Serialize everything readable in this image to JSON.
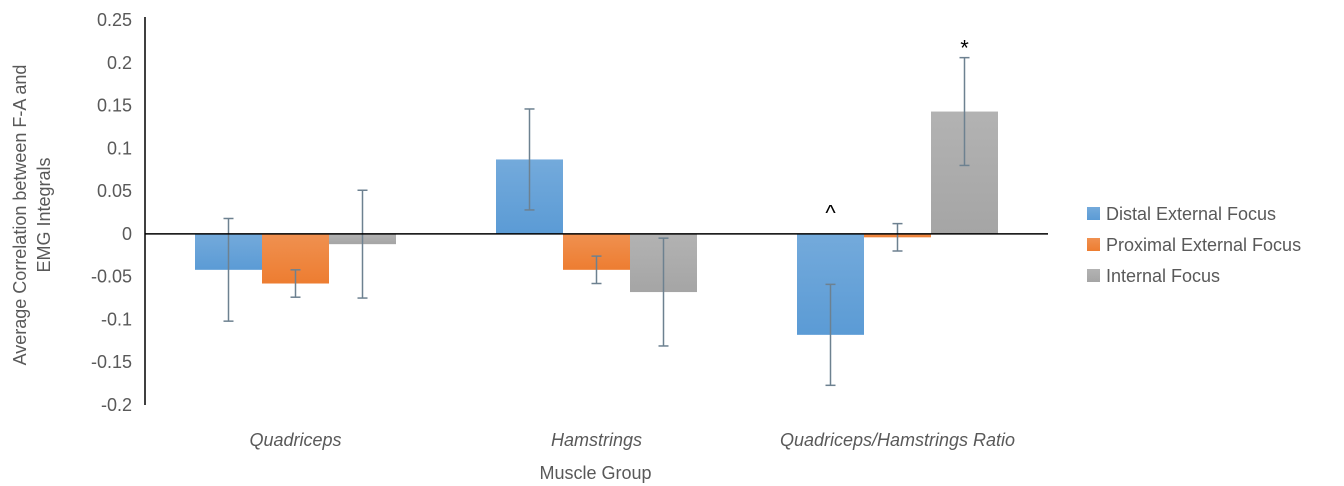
{
  "chart_data": {
    "type": "bar",
    "title": "",
    "xlabel": "Muscle Group",
    "ylabel": [
      "Average Correlation between F-A and",
      "EMG Integrals"
    ],
    "ylim": [
      -0.2,
      0.25
    ],
    "yticks": [
      "0.25",
      "0.2",
      "0.15",
      "0.1",
      "0.05",
      "0",
      "-0.05",
      "-0.1",
      "-0.15",
      "-0.2"
    ],
    "categories": [
      "Quadriceps",
      "Hamstrings",
      "Quadriceps/Hamstrings Ratio"
    ],
    "series": [
      {
        "name": "Distal External Focus",
        "color": "#5b9bd5",
        "values": [
          -0.042,
          0.087,
          -0.118
        ],
        "errors": [
          0.06,
          0.059,
          0.059
        ]
      },
      {
        "name": "Proximal External Focus",
        "color": "#ed7d31",
        "values": [
          -0.058,
          -0.042,
          -0.004
        ],
        "errors": [
          0.016,
          0.016,
          0.016
        ]
      },
      {
        "name": "Internal Focus",
        "color": "#a5a5a5",
        "values": [
          -0.012,
          -0.068,
          0.143
        ],
        "errors": [
          0.063,
          0.063,
          0.063
        ]
      }
    ],
    "annotations": [
      {
        "text": "^",
        "category": 2,
        "series": 0,
        "value": 0.025
      },
      {
        "text": "*",
        "category": 2,
        "series": 2,
        "value": 0.218
      }
    ],
    "legend_position": "right",
    "grid": false
  }
}
